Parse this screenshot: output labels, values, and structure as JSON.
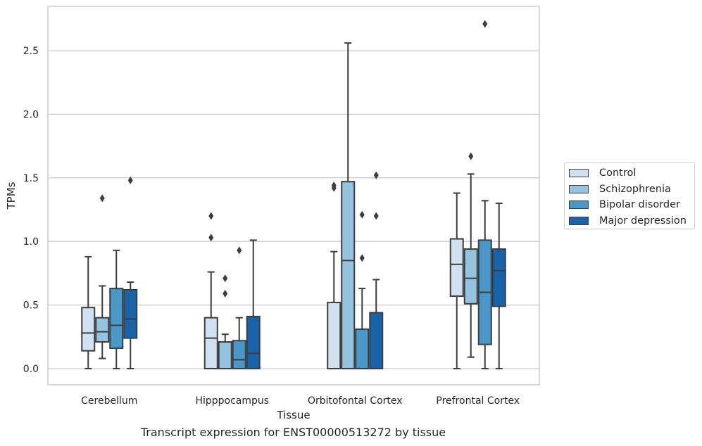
{
  "caption": "Transcript expression for ENST00000513272 by tissue",
  "chart_data": {
    "type": "box",
    "title": "",
    "xlabel": "Tissue",
    "ylabel": "TPMs",
    "ylim": [
      -0.13,
      2.86
    ],
    "yticks": [
      "0.0",
      "0.5",
      "1.0",
      "1.5",
      "2.0",
      "2.5"
    ],
    "grid": "horizontal",
    "legend_position": "right",
    "categories": [
      "Cerebellum",
      "Hipppocampus",
      "Orbitofontal Cortex",
      "Prefrontal Cortex"
    ],
    "series": [
      {
        "name": "Control",
        "color": "#d0e1f2",
        "boxes": [
          {
            "lower_whisker": 0.0,
            "q1": 0.14,
            "median": 0.28,
            "q3": 0.48,
            "upper_whisker": 0.88,
            "outliers": []
          },
          {
            "lower_whisker": 0.0,
            "q1": 0.0,
            "median": 0.24,
            "q3": 0.4,
            "upper_whisker": 0.76,
            "outliers": [
              1.03,
              1.2
            ]
          },
          {
            "lower_whisker": 0.0,
            "q1": 0.0,
            "median": 0.0,
            "q3": 0.52,
            "upper_whisker": 0.92,
            "outliers": [
              1.42,
              1.44
            ]
          },
          {
            "lower_whisker": 0.0,
            "q1": 0.57,
            "median": 0.82,
            "q3": 1.02,
            "upper_whisker": 1.38,
            "outliers": []
          }
        ]
      },
      {
        "name": "Schizophrenia",
        "color": "#94c4df",
        "boxes": [
          {
            "lower_whisker": 0.08,
            "q1": 0.21,
            "median": 0.29,
            "q3": 0.4,
            "upper_whisker": 0.65,
            "outliers": [
              1.34
            ]
          },
          {
            "lower_whisker": 0.0,
            "q1": 0.0,
            "median": 0.0,
            "q3": 0.21,
            "upper_whisker": 0.27,
            "outliers": [
              0.59,
              0.71
            ]
          },
          {
            "lower_whisker": 0.0,
            "q1": 0.0,
            "median": 0.85,
            "q3": 1.47,
            "upper_whisker": 2.56,
            "outliers": []
          },
          {
            "lower_whisker": 0.09,
            "q1": 0.51,
            "median": 0.71,
            "q3": 0.94,
            "upper_whisker": 1.53,
            "outliers": [
              1.67
            ]
          }
        ]
      },
      {
        "name": "Bipolar disorder",
        "color": "#4a98c9",
        "boxes": [
          {
            "lower_whisker": 0.0,
            "q1": 0.16,
            "median": 0.34,
            "q3": 0.63,
            "upper_whisker": 0.93,
            "outliers": []
          },
          {
            "lower_whisker": 0.0,
            "q1": 0.0,
            "median": 0.07,
            "q3": 0.22,
            "upper_whisker": 0.4,
            "outliers": [
              0.93
            ]
          },
          {
            "lower_whisker": 0.0,
            "q1": 0.0,
            "median": 0.0,
            "q3": 0.31,
            "upper_whisker": 0.63,
            "outliers": [
              0.87,
              1.21
            ]
          },
          {
            "lower_whisker": 0.0,
            "q1": 0.19,
            "median": 0.6,
            "q3": 1.01,
            "upper_whisker": 1.32,
            "outliers": [
              2.71
            ]
          }
        ]
      },
      {
        "name": "Major depression",
        "color": "#1764ab",
        "boxes": [
          {
            "lower_whisker": 0.0,
            "q1": 0.24,
            "median": 0.39,
            "q3": 0.62,
            "upper_whisker": 0.68,
            "outliers": [
              1.48
            ]
          },
          {
            "lower_whisker": 0.0,
            "q1": 0.0,
            "median": 0.12,
            "q3": 0.41,
            "upper_whisker": 1.01,
            "outliers": []
          },
          {
            "lower_whisker": 0.0,
            "q1": 0.0,
            "median": 0.0,
            "q3": 0.44,
            "upper_whisker": 0.7,
            "outliers": [
              1.2,
              1.52
            ]
          },
          {
            "lower_whisker": 0.0,
            "q1": 0.49,
            "median": 0.77,
            "q3": 0.94,
            "upper_whisker": 1.3,
            "outliers": []
          }
        ]
      }
    ]
  }
}
